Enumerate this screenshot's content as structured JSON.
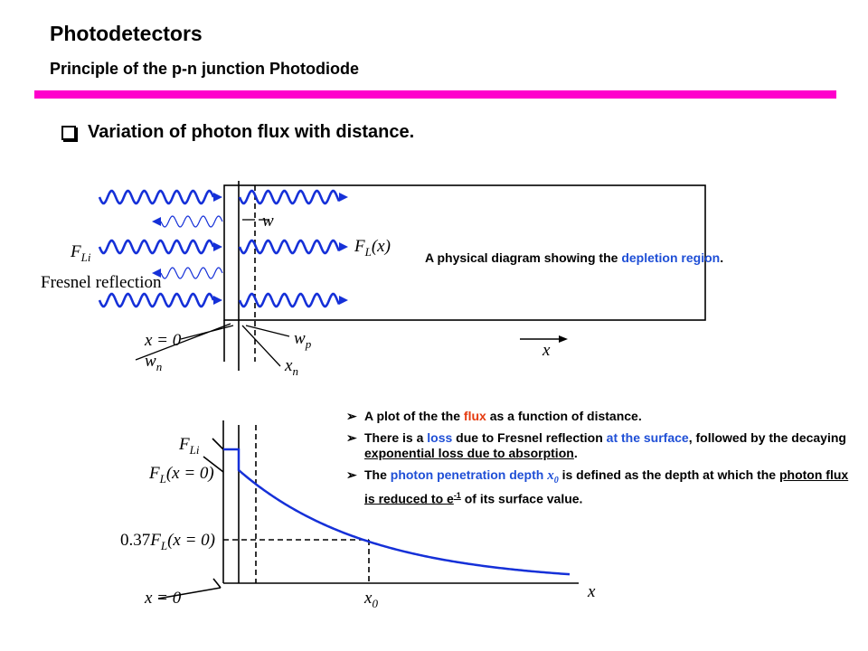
{
  "header": {
    "title": "Photodetectors",
    "subtitle": "Principle of the p-n junction Photodiode"
  },
  "section": "Variation of photon flux with distance.",
  "diagram1": {
    "labels": {
      "w": "w",
      "flux_in": {
        "base": "F",
        "sub": "Li"
      },
      "flux_x": {
        "base": "F",
        "sub": "L",
        "tail": "(x)"
      },
      "fresnel": "Fresnel reflection",
      "x_zero": "x = 0",
      "w_p": {
        "base": "w",
        "sub": "p"
      },
      "w_n": {
        "base": "w",
        "sub": "n"
      },
      "x_n": {
        "base": "x",
        "sub": "n"
      },
      "x": "x"
    },
    "caption": [
      "A physical diagram showing the ",
      "depletion region",
      "."
    ]
  },
  "diagram2": {
    "labels": {
      "flux_in": {
        "base": "F",
        "sub": "Li"
      },
      "flux_surface": {
        "base": "F",
        "sub": "L",
        "tail": "(x = 0)"
      },
      "flux_reduced": {
        "head": "0.37",
        "base": "F",
        "sub": "L",
        "tail": "(x = 0)"
      },
      "x_zero": "x = 0",
      "x0": {
        "base": "x",
        "sub": "0"
      },
      "x": "x"
    }
  },
  "bullets": [
    [
      "A plot of the the ",
      "flux",
      " as a function of distance."
    ],
    [
      "There is a ",
      "loss",
      " due to Fresnel reflection ",
      "at the surface",
      ", followed by the decaying ",
      "exponential loss due to absorption",
      "."
    ],
    [
      "The ",
      "photon penetration depth",
      " ",
      "x",
      "0",
      " is defined as the depth at which the ",
      "photon flux is reduced to e",
      "-1",
      " of its surface value."
    ]
  ]
}
